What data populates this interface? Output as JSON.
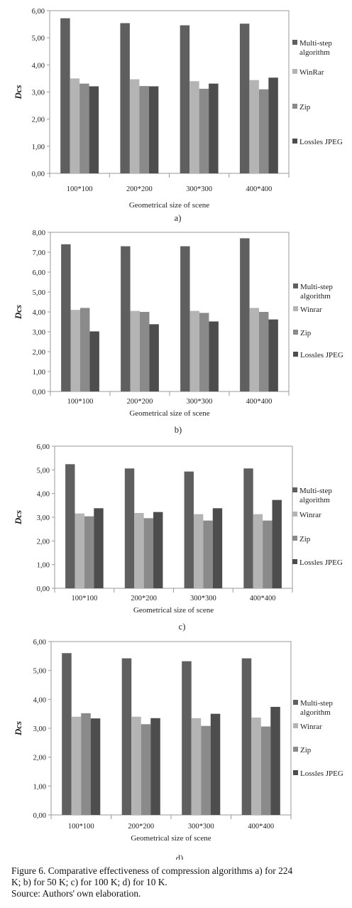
{
  "chart_data": [
    {
      "type": "bar",
      "panel_label": "a)",
      "categories": [
        "100*100",
        "200*200",
        "300*300",
        "400*400"
      ],
      "xlabel": "Geometrical size of scene",
      "ylabel": "Dcs",
      "ylim": [
        0,
        6
      ],
      "y_ticks": [
        "0,00",
        "1,00",
        "2,00",
        "3,00",
        "4,00",
        "5,00",
        "6,00"
      ],
      "series": [
        {
          "name": "Multi-step algorithm",
          "values": [
            5.72,
            5.54,
            5.46,
            5.52
          ]
        },
        {
          "name": "WinRar",
          "values": [
            3.5,
            3.47,
            3.4,
            3.44
          ]
        },
        {
          "name": "Zip",
          "values": [
            3.31,
            3.22,
            3.12,
            3.1
          ]
        },
        {
          "name": "Lossles JPEG",
          "values": [
            3.21,
            3.21,
            3.31,
            3.53
          ]
        }
      ]
    },
    {
      "type": "bar",
      "panel_label": "b)",
      "categories": [
        "100*100",
        "200*200",
        "300*300",
        "400*400"
      ],
      "xlabel": "Geometrical  size of scene",
      "ylabel": "Dcs",
      "ylim": [
        0,
        8
      ],
      "y_ticks": [
        "0,00",
        "1,00",
        "2,00",
        "3,00",
        "4,00",
        "5,00",
        "6,00",
        "7,00",
        "8,00"
      ],
      "series": [
        {
          "name": "Multi-step algorithm",
          "values": [
            7.4,
            7.3,
            7.3,
            7.7
          ]
        },
        {
          "name": "Winrar",
          "values": [
            4.1,
            4.05,
            4.05,
            4.2
          ]
        },
        {
          "name": "Zip",
          "values": [
            4.2,
            4.0,
            3.95,
            4.0
          ]
        },
        {
          "name": "Lossles JPEG",
          "values": [
            3.02,
            3.38,
            3.52,
            3.62
          ]
        }
      ]
    },
    {
      "type": "bar",
      "panel_label": "c)",
      "categories": [
        "100*100",
        "200*200",
        "300*300",
        "400*400"
      ],
      "xlabel": "Geometrical  size of scene",
      "ylabel": "Dcs",
      "ylim": [
        0,
        6
      ],
      "y_ticks": [
        "0,00",
        "1,00",
        "2,00",
        "3,00",
        "4,00",
        "5,00",
        "6,00"
      ],
      "series": [
        {
          "name": "Multi-step algorithm",
          "values": [
            5.24,
            5.06,
            4.93,
            5.06
          ]
        },
        {
          "name": "Winrar",
          "values": [
            3.16,
            3.18,
            3.13,
            3.13
          ]
        },
        {
          "name": "Zip",
          "values": [
            3.04,
            2.96,
            2.86,
            2.86
          ]
        },
        {
          "name": "Lossles JPEG",
          "values": [
            3.38,
            3.22,
            3.38,
            3.73
          ]
        }
      ]
    },
    {
      "type": "bar",
      "panel_label": "d)",
      "categories": [
        "100*100",
        "200*200",
        "300*300",
        "400*400"
      ],
      "xlabel": "Geometrical  size of scene",
      "ylabel": "Dcs",
      "ylim": [
        0,
        6
      ],
      "y_ticks": [
        "0,00",
        "1,00",
        "2,00",
        "3,00",
        "4,00",
        "5,00",
        "6,00"
      ],
      "series": [
        {
          "name": "Multi-step algorithm",
          "values": [
            5.6,
            5.42,
            5.32,
            5.42
          ]
        },
        {
          "name": "Winrar",
          "values": [
            3.4,
            3.4,
            3.35,
            3.37
          ]
        },
        {
          "name": "Zip",
          "values": [
            3.52,
            3.14,
            3.08,
            3.06
          ]
        },
        {
          "name": "Lossles JPEG",
          "values": [
            3.34,
            3.35,
            3.5,
            3.74
          ]
        }
      ]
    }
  ],
  "colors": {
    "series": [
      "#5f5f5f",
      "#b4b4b4",
      "#8a8a8a",
      "#4d4d4d"
    ],
    "axis": "#9a9a9a"
  },
  "caption": {
    "line1": "Figure 6. Comparative effectiveness of compression algorithms a) for 224",
    "line2": "K; b) for 50 K; c) for 100 K; d) for 10 K.",
    "source": "Source: Authors' own elaboration."
  }
}
